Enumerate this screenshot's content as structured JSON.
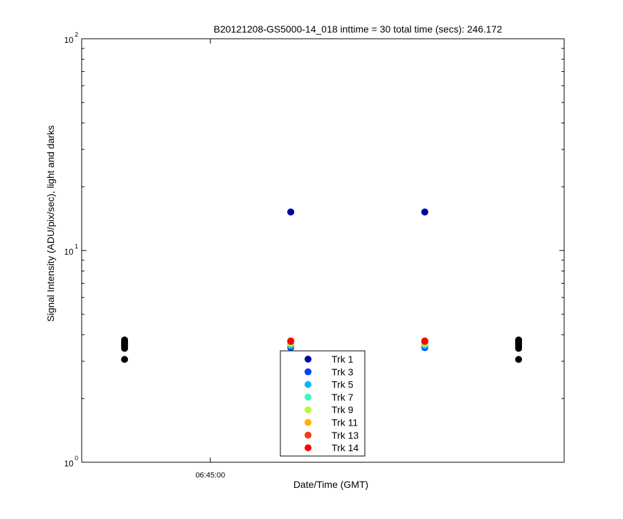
{
  "chart_data": {
    "type": "scatter",
    "title": "B20121208-GS5000-14_018 inttime = 30 total time (secs): 246.172",
    "xlabel": "Date/Time (GMT)",
    "ylabel": "Signal Intensity (ADU/pix/sec), light and darks",
    "y_scale": "log",
    "ylim": [
      1,
      100
    ],
    "y_ticks": [
      {
        "base": "10",
        "exp": "0",
        "value": 1
      },
      {
        "base": "10",
        "exp": "1",
        "value": 10
      },
      {
        "base": "10",
        "exp": "2",
        "value": 100
      }
    ],
    "x_ticks": [
      "06:45:00"
    ],
    "x_tick_times": [
      "06:45:00"
    ],
    "xlim": [
      "06:44:12",
      "06:47:12"
    ],
    "grid": false,
    "legend_position": "bottom-center",
    "light_times": [
      "06:45:30",
      "06:46:20"
    ],
    "series": [
      {
        "name": "Trk 1",
        "color": "#0000a8",
        "values": [
          15.2,
          15.2
        ]
      },
      {
        "name": "Trk 3",
        "color": "#0040ff",
        "values": [
          3.48,
          3.48
        ]
      },
      {
        "name": "Trk 5",
        "color": "#00b8f8",
        "values": [
          3.55,
          3.55
        ]
      },
      {
        "name": "Trk 7",
        "color": "#40f8c0",
        "values": [
          3.62,
          3.62
        ]
      },
      {
        "name": "Trk 9",
        "color": "#b8f840",
        "values": [
          3.66,
          3.66
        ]
      },
      {
        "name": "Trk 11",
        "color": "#ffb000",
        "values": [
          3.7,
          3.7
        ]
      },
      {
        "name": "Trk 13",
        "color": "#f04010",
        "values": [
          3.72,
          3.72
        ]
      },
      {
        "name": "Trk 14",
        "color": "#ff0000",
        "values": [
          3.74,
          3.74
        ]
      }
    ],
    "darks": {
      "color": "#000000",
      "times": [
        "06:44:28",
        "06:46:55"
      ],
      "values": [
        3.06,
        3.45,
        3.52,
        3.58,
        3.63,
        3.68,
        3.73,
        3.78
      ]
    }
  }
}
